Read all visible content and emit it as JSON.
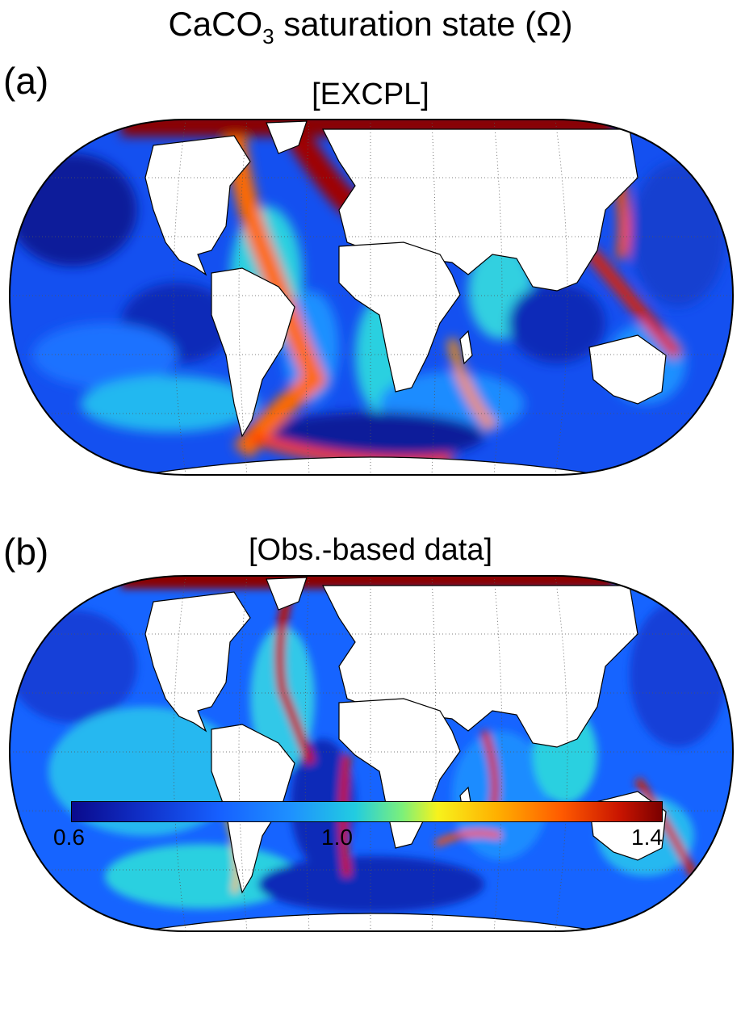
{
  "figure": {
    "title_main": "CaCO",
    "title_sub": "3",
    "title_rest": " saturation state (Ω)"
  },
  "panels": [
    {
      "label": "(a)",
      "title": "[EXCPL]"
    },
    {
      "label": "(b)",
      "title": "[Obs.-based data]"
    }
  ],
  "colorbar": {
    "min_label": "0.6",
    "mid_label": "1.0",
    "max_label": "1.4",
    "range": [
      0.6,
      1.4
    ],
    "colormap": [
      "#0a0a8c",
      "#1660ff",
      "#22cce0",
      "#f7f21c",
      "#ff5a00",
      "#7a0000"
    ]
  },
  "map": {
    "projection": "Robinson",
    "graticule": "dotted",
    "land_color": "#ffffff",
    "coastline_color": "#000000"
  }
}
